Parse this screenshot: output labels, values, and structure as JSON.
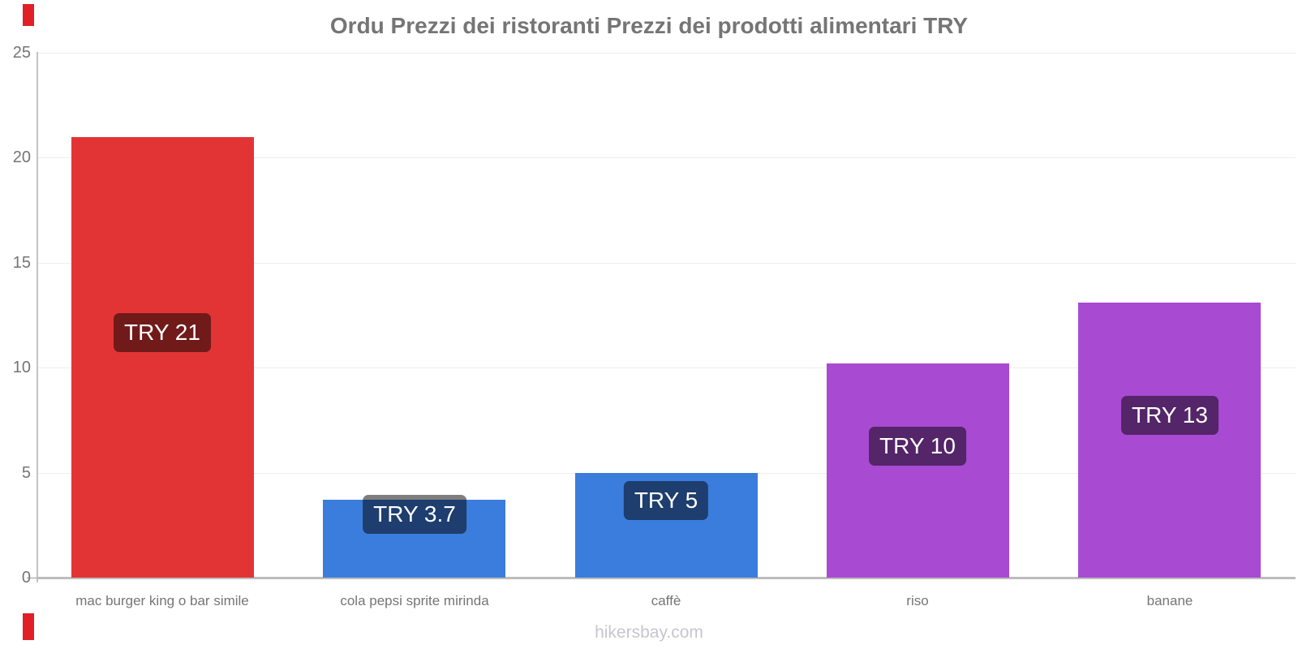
{
  "title": "Ordu Prezzi dei ristoranti Prezzi dei prodotti alimentari TRY",
  "footer": "hikersbay.com",
  "chart_data": {
    "type": "bar",
    "title": "Ordu Prezzi dei ristoranti Prezzi dei prodotti alimentari TRY",
    "categories": [
      "mac burger king o bar simile",
      "cola pepsi sprite mirinda",
      "caffè",
      "riso",
      "banane"
    ],
    "values": [
      21,
      3.7,
      5,
      10.2,
      13.1
    ],
    "bar_labels": [
      "TRY 21",
      "TRY 3.7",
      "TRY 5",
      "TRY 10",
      "TRY 13"
    ],
    "bar_colors": [
      "#e23434",
      "#3b7ddd",
      "#3b7ddd",
      "#a84ad2",
      "#a84ad2"
    ],
    "xlabel": "",
    "ylabel": "",
    "ylim": [
      0,
      25
    ],
    "yticks": [
      0,
      5,
      10,
      15,
      20,
      25
    ],
    "grid": true,
    "legend_position": "none",
    "currency": "TRY"
  },
  "colors": {
    "title_text": "#757575",
    "axis_line": "#bcbcbc",
    "grid_line": "#ededed",
    "tick_text": "#757575",
    "badge_background": "rgba(0,0,0,0.5)",
    "badge_text": "#ffffff",
    "footer_text": "#c6c6d0",
    "corner_mark": "#e01f26"
  }
}
